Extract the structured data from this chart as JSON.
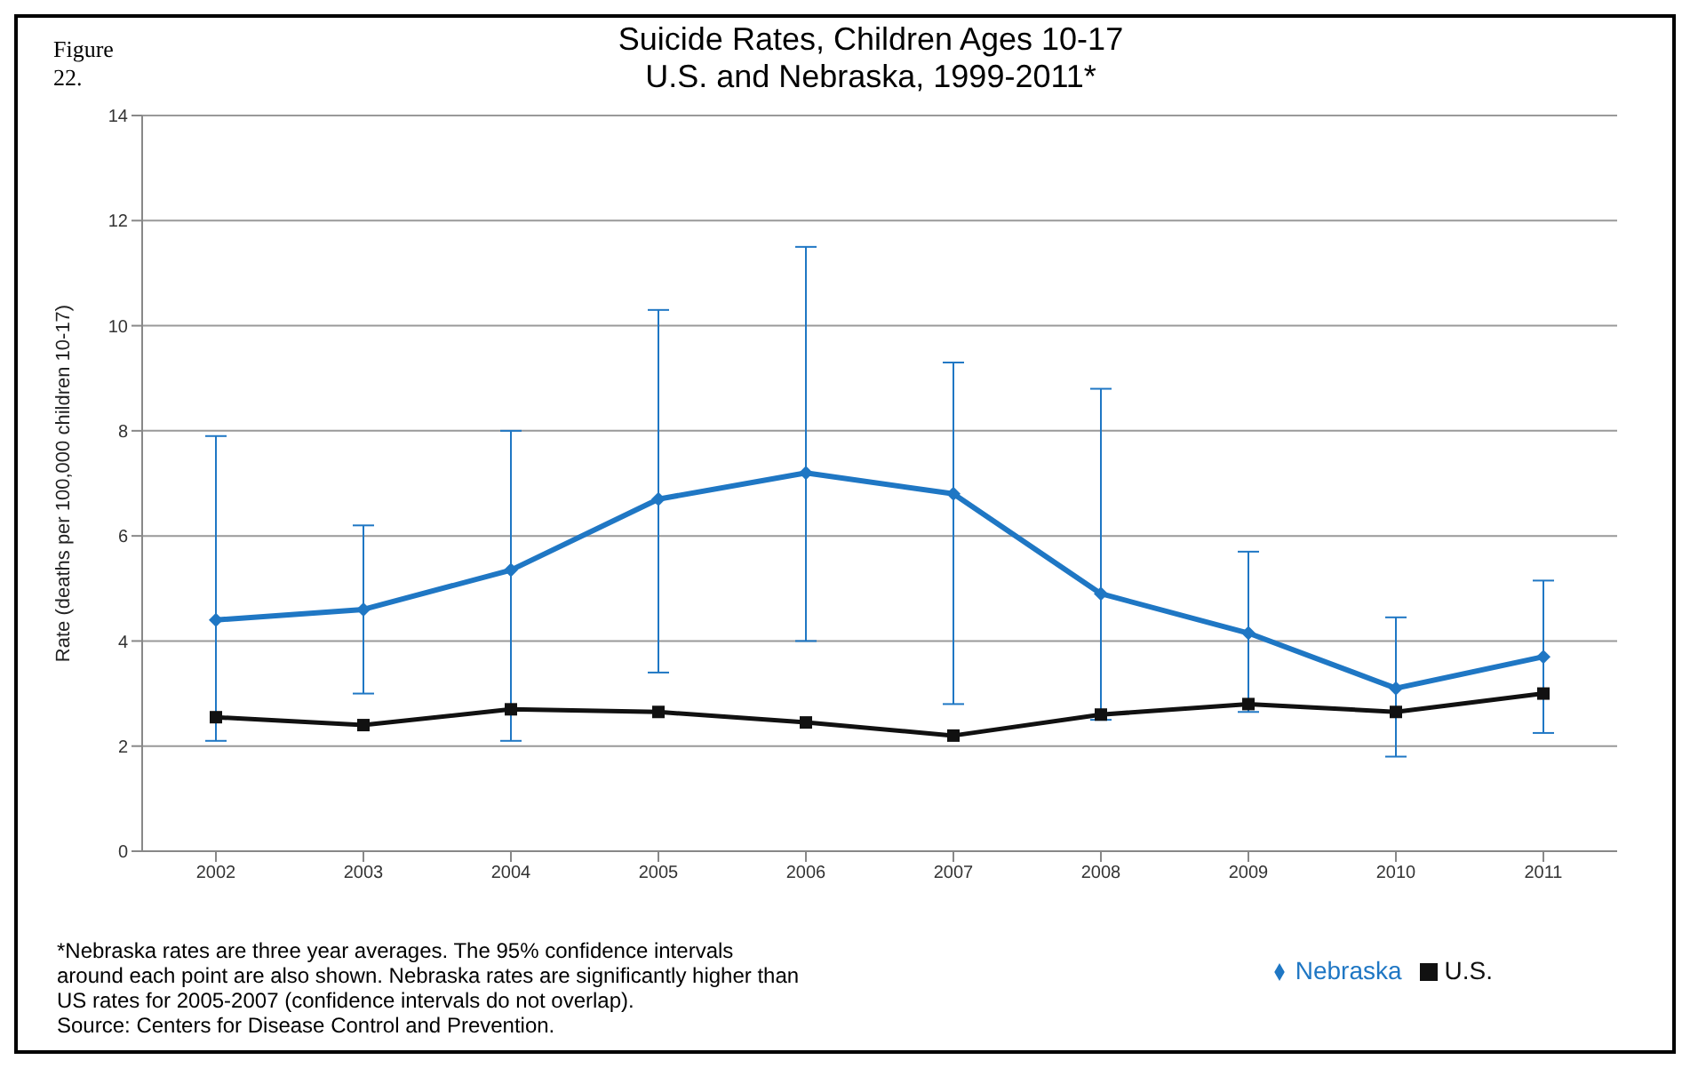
{
  "chart_data": {
    "type": "line",
    "title": "Suicide Rates, Children Ages 10-17\nU.S. and Nebraska, 1999-2011*",
    "ylabel": "Rate (deaths per 100,000 children 10-17)",
    "categories": [
      "2002",
      "2003",
      "2004",
      "2005",
      "2006",
      "2007",
      "2008",
      "2009",
      "2010",
      "2011"
    ],
    "series": [
      {
        "name": "Nebraska",
        "color": "#1f77c4",
        "marker": "diamond",
        "values": [
          4.4,
          4.6,
          5.35,
          6.7,
          7.2,
          6.8,
          4.9,
          4.15,
          3.1,
          3.7
        ],
        "errors": [
          [
            2.1,
            7.9
          ],
          [
            3.0,
            6.2
          ],
          [
            2.1,
            8.0
          ],
          [
            3.4,
            10.3
          ],
          [
            4.0,
            11.5
          ],
          [
            2.8,
            9.3
          ],
          [
            2.5,
            8.8
          ],
          [
            2.65,
            5.7
          ],
          [
            1.8,
            4.45
          ],
          [
            2.25,
            5.15
          ]
        ]
      },
      {
        "name": "U.S.",
        "color": "#111111",
        "marker": "square",
        "values": [
          2.55,
          2.4,
          2.7,
          2.65,
          2.45,
          2.2,
          2.6,
          2.8,
          2.65,
          3.0
        ]
      }
    ],
    "ylim": [
      0,
      14
    ],
    "yticks": [
      0,
      2,
      4,
      6,
      8,
      10,
      12,
      14
    ],
    "grid": "y",
    "legend": "bottom",
    "annotations": [
      "Figure 22.",
      "*Nebraska rates are three year averages.  The 95% confidence intervals around each point are also shown.  Nebraska rates are significantly higher than US rates for 2005-2007 (confidence intervals do not overlap).",
      "Source: Centers for Disease Control and Prevention."
    ]
  }
}
